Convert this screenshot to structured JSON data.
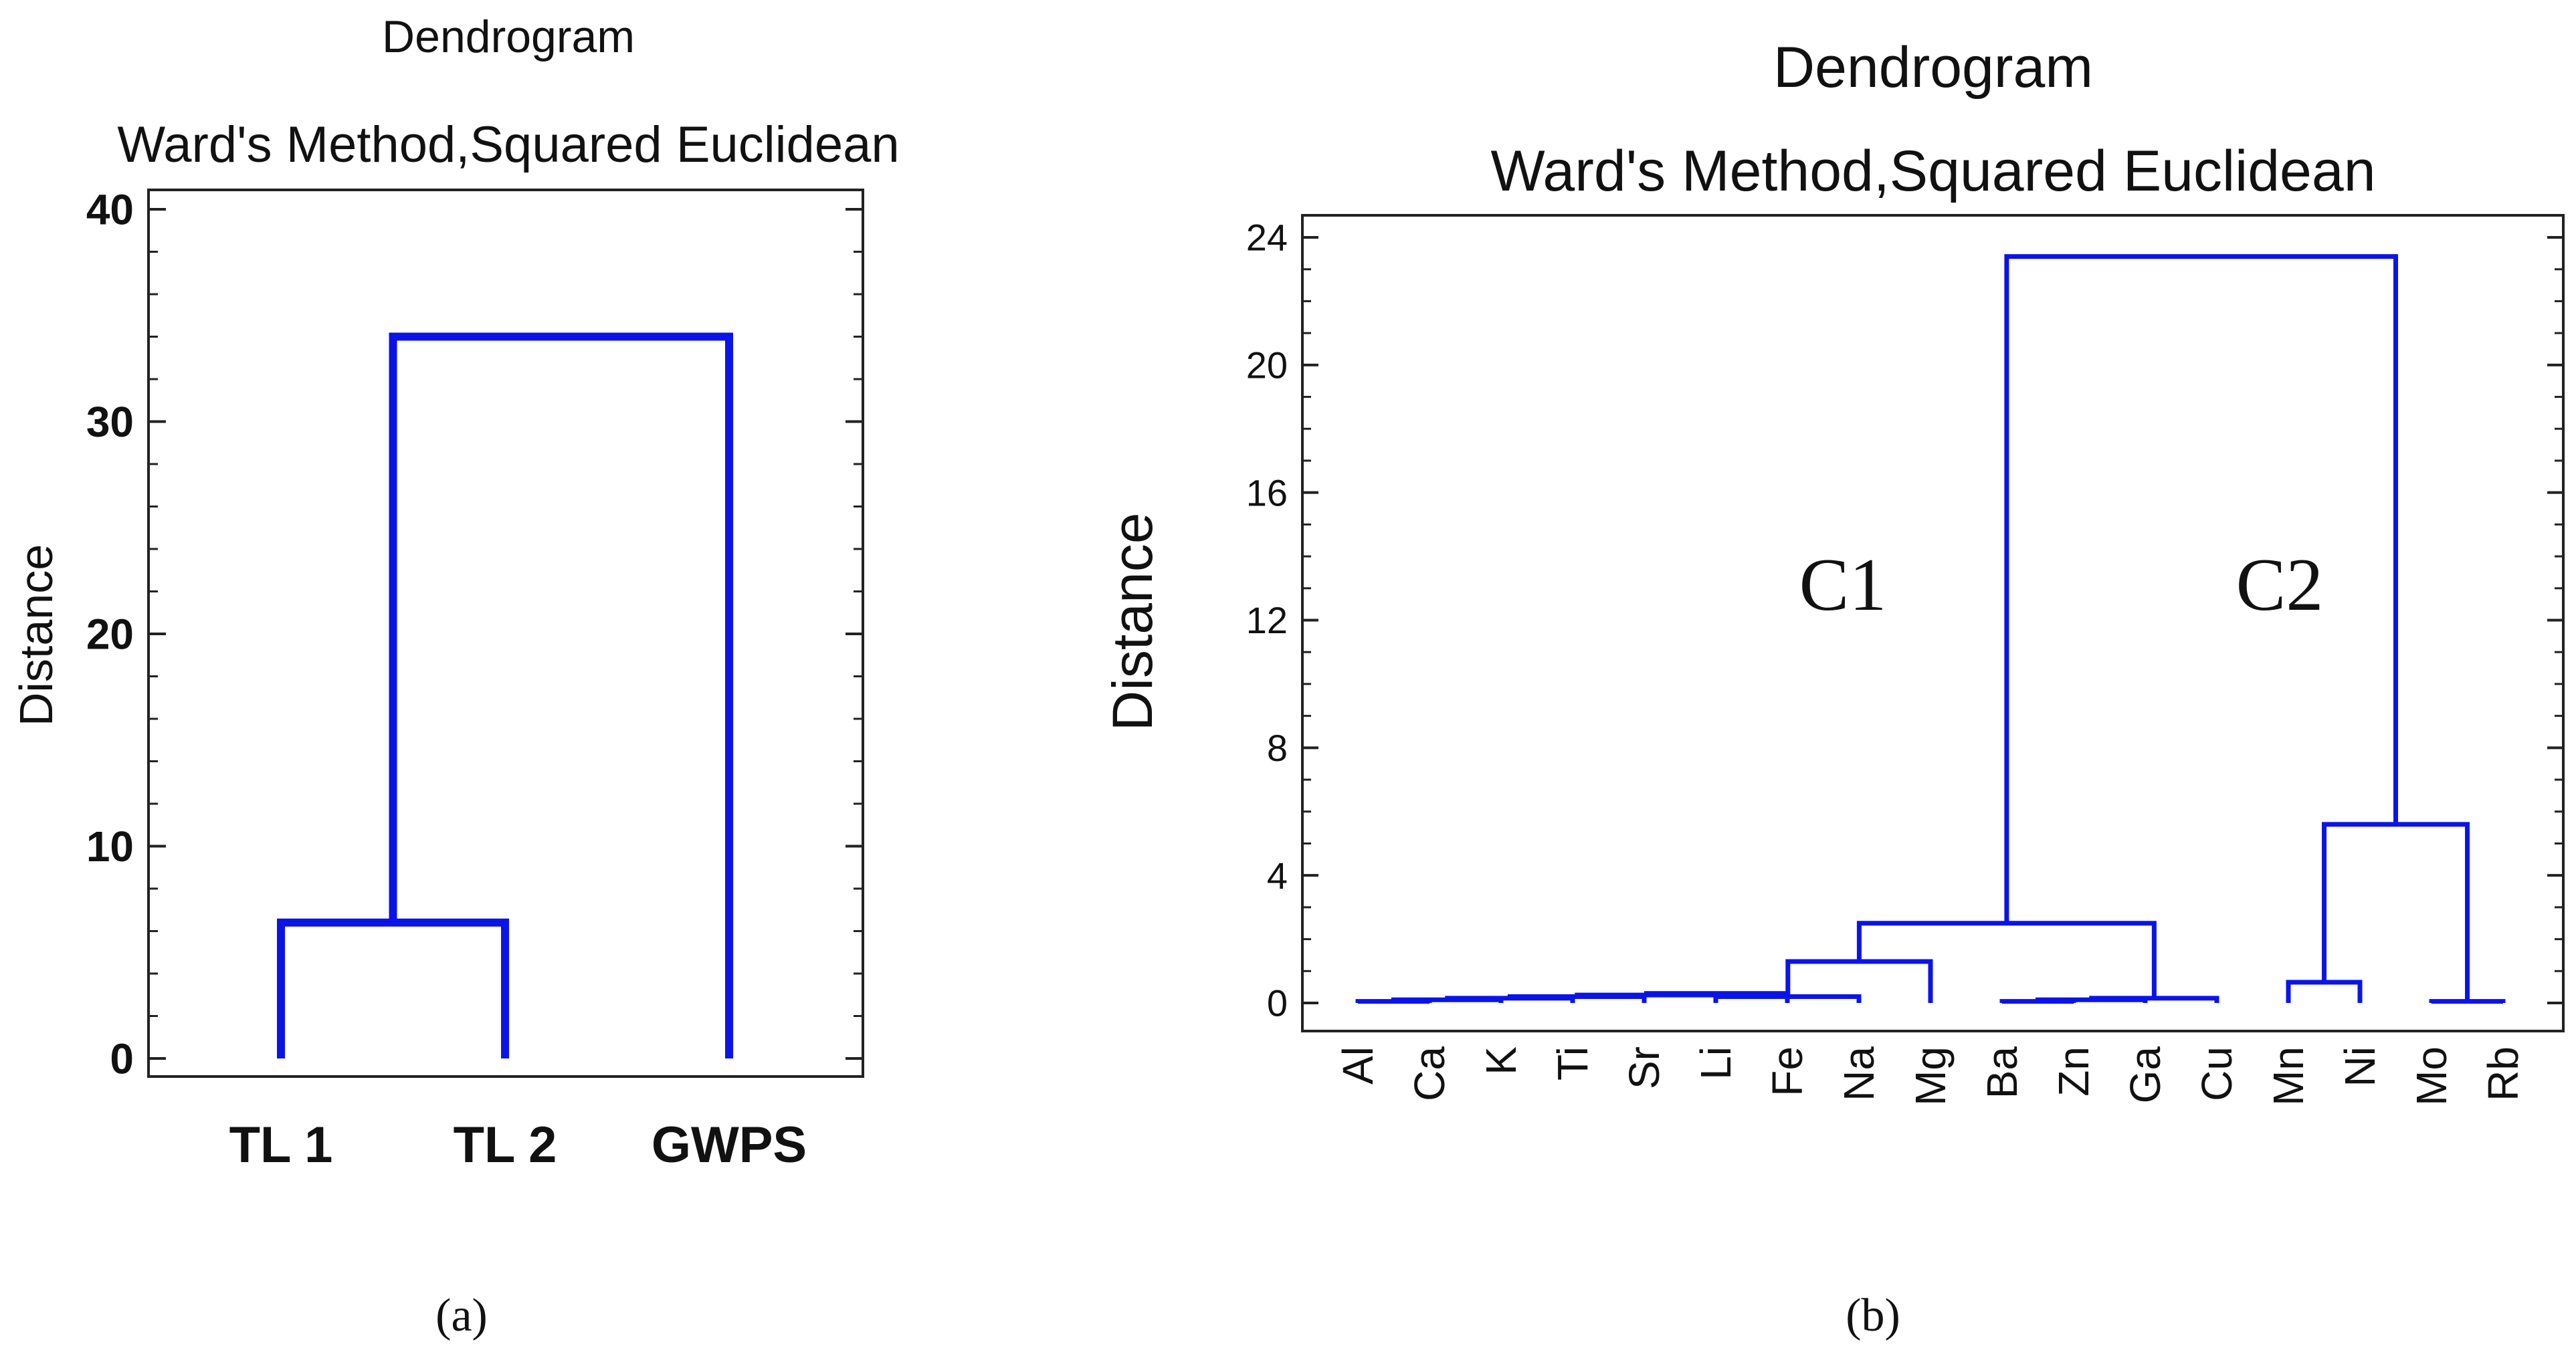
{
  "chart_data": [
    {
      "type": "dendrogram",
      "panel_label": "(a)",
      "title": "Dendrogram",
      "subtitle": "Ward's Method,Squared Euclidean",
      "ylabel": "Distance",
      "ylim": [
        0,
        40
      ],
      "yticks": [
        0,
        10,
        20,
        30,
        40
      ],
      "leaves": [
        "TL 1",
        "TL 2",
        "GWPS"
      ],
      "merges": [
        {
          "left": "TL 1",
          "right": "TL 2",
          "height": 6.4
        },
        {
          "left": "TL 1 + TL 2",
          "right": "GWPS",
          "height": 34.0
        }
      ],
      "line_color": "#0a14ea"
    },
    {
      "type": "dendrogram",
      "panel_label": "(b)",
      "title": "Dendrogram",
      "subtitle": "Ward's Method,Squared Euclidean",
      "ylabel": "Distance",
      "ylim": [
        -0.6,
        24.5
      ],
      "yticks": [
        0,
        4,
        8,
        12,
        16,
        20,
        24
      ],
      "leaves": [
        "Al",
        "Ca",
        "K",
        "Ti",
        "Sr",
        "Li",
        "Fe",
        "Na",
        "Mg",
        "Ba",
        "Zn",
        "Ga",
        "Cu",
        "Mn",
        "Ni",
        "Mo",
        "Rb"
      ],
      "annotations": [
        "C1",
        "C2"
      ],
      "merges": [
        {
          "left": "Al",
          "right": "Ca",
          "height": 0.05
        },
        {
          "left": "Al + Ca",
          "right": "K",
          "height": 0.1
        },
        {
          "left": "Al + Ca + K",
          "right": "Ti",
          "height": 0.15
        },
        {
          "left": "Al…Ti",
          "right": "Sr",
          "height": 0.2
        },
        {
          "left": "Al…Sr",
          "right": "Li",
          "height": 0.25
        },
        {
          "left": "Al…Li",
          "right": "Fe",
          "height": 0.3
        },
        {
          "left": "Al…Fe",
          "right": "Na",
          "height": 0.2
        },
        {
          "left": "Al…Na",
          "right": "Mg",
          "height": 1.3
        },
        {
          "left": "Ba",
          "right": "Zn",
          "height": 0.05
        },
        {
          "left": "Ba + Zn",
          "right": "Ga",
          "height": 0.1
        },
        {
          "left": "Ba…Ga",
          "right": "Cu",
          "height": 0.15
        },
        {
          "left": "Al…Mg",
          "right": "Ba…Cu",
          "height": 2.5
        },
        {
          "left": "Mn",
          "right": "Ni",
          "height": 0.65
        },
        {
          "left": "Mo",
          "right": "Rb",
          "height": 0.05
        },
        {
          "left": "Mn + Ni",
          "right": "Mo + Rb",
          "height": 5.6
        },
        {
          "left": "C1",
          "right": "C2",
          "height": 23.4
        }
      ],
      "line_color": "#0a14ea"
    }
  ]
}
